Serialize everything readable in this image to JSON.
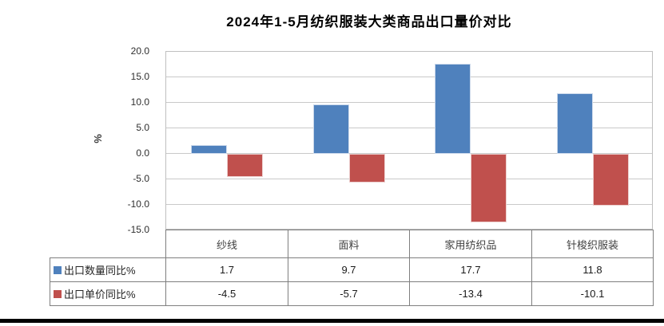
{
  "chart_data": {
    "type": "bar",
    "title": "2024年1-5月纺织服装大类商品出口量价对比",
    "xlabel": "",
    "ylabel": "%",
    "categories": [
      "纱线",
      "面料",
      "家用纺织品",
      "针梭织服装"
    ],
    "series": [
      {
        "name": "出口数量同比%",
        "color": "#4f81bd",
        "border_color": "#ccd9eb",
        "values": [
          1.7,
          9.7,
          17.7,
          11.8
        ]
      },
      {
        "name": "出口单价同比%",
        "color": "#c0504d",
        "border_color": "#eccfce",
        "values": [
          -4.5,
          -5.7,
          -13.4,
          -10.1
        ]
      }
    ],
    "ylim": [
      -15,
      20
    ],
    "ytick_step": 5,
    "ytick_labels": [
      "20.0",
      "15.0",
      "10.0",
      "5.0",
      "0.0",
      "-5.0",
      "-10.0",
      "-15.0"
    ],
    "grid": true,
    "legend_position": "table rows below chart"
  },
  "colors": {
    "series_quantity": "#4f81bd",
    "series_price": "#c0504d",
    "gridline": "#c9c9c9",
    "plot_border": "#bfbfbf",
    "table_border": "#7f7f7f",
    "title_text": "#000000",
    "bottom_rule": "#000000"
  }
}
